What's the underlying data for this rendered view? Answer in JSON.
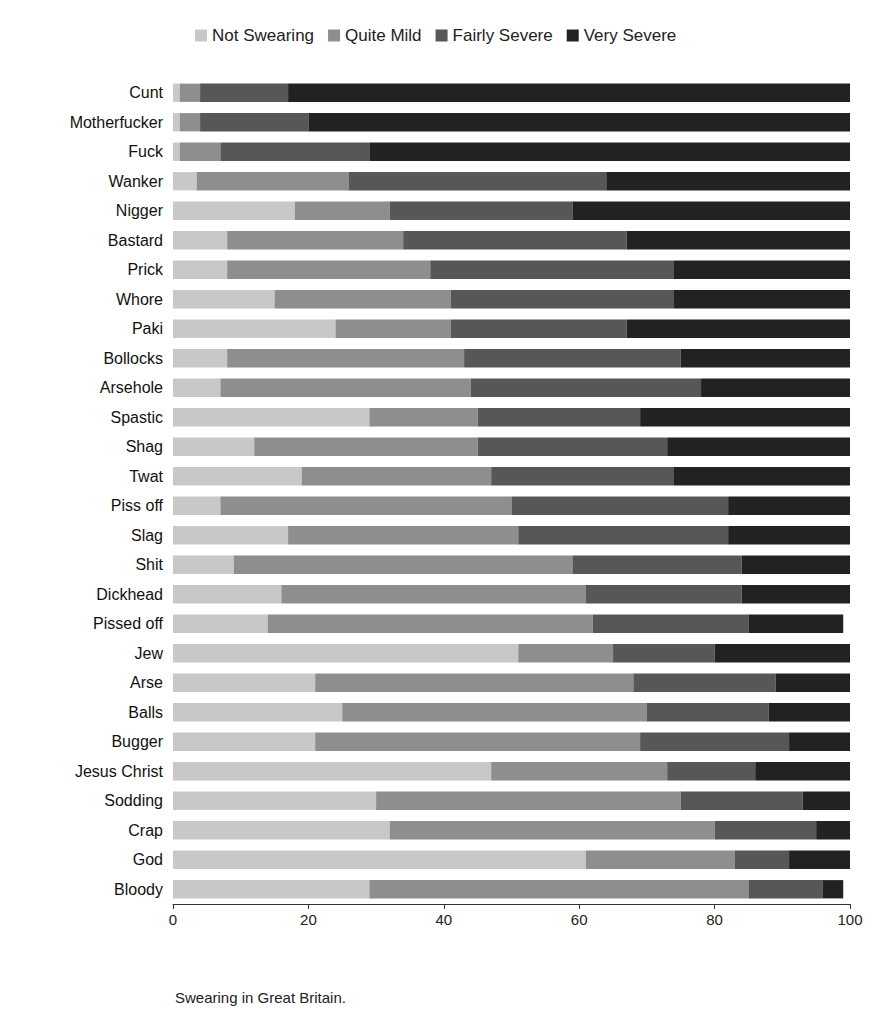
{
  "chart_data": {
    "type": "bar",
    "title": "Swearing in Great Britain.",
    "orientation": "horizontal",
    "stacked": true,
    "grid": false,
    "legend": "top",
    "categories": [
      "Cunt",
      "Motherfucker",
      "Fuck",
      "Wanker",
      "Nigger",
      "Bastard",
      "Prick",
      "Whore",
      "Paki",
      "Bollocks",
      "Arsehole",
      "Spastic",
      "Shag",
      "Twat",
      "Piss off",
      "Slag",
      "Shit",
      "Dickhead",
      "Pissed off",
      "Jew",
      "Arse",
      "Balls",
      "Bugger",
      "Jesus Christ",
      "Sodding",
      "Crap",
      "God",
      "Bloody"
    ],
    "series": [
      {
        "name": "Not Swearing",
        "color": "#c8c8c8",
        "values": [
          1,
          1,
          1,
          3.5,
          18,
          8,
          8,
          15,
          24,
          8,
          7,
          29,
          12,
          19,
          7,
          17,
          9,
          16,
          14,
          51,
          21,
          25,
          21,
          47,
          30,
          32,
          61,
          29
        ]
      },
      {
        "name": "Quite Mild",
        "color": "#8e8e8e",
        "values": [
          3,
          3,
          6,
          22.5,
          14,
          26,
          30,
          26,
          17,
          35,
          37,
          16,
          33,
          28,
          43,
          34,
          50,
          45,
          48,
          14,
          47,
          45,
          48,
          26,
          45,
          48,
          22,
          56
        ]
      },
      {
        "name": "Fairly Severe",
        "color": "#575757",
        "values": [
          13,
          16,
          22,
          38,
          27,
          33,
          36,
          33,
          26,
          32,
          34,
          24,
          28,
          27,
          32,
          31,
          25,
          23,
          23,
          15,
          21,
          18,
          22,
          13,
          18,
          15,
          8,
          11
        ]
      },
      {
        "name": "Very Severe",
        "color": "#222222",
        "values": [
          83,
          80,
          71,
          36,
          41,
          33,
          26,
          26,
          33,
          25,
          22,
          31,
          27,
          26,
          18,
          18,
          16,
          16,
          14,
          20,
          11,
          12,
          9,
          14,
          7,
          5,
          9,
          3
        ]
      }
    ],
    "xlim": [
      0,
      100
    ],
    "xticks": [
      0,
      20,
      40,
      60,
      80,
      100
    ]
  }
}
